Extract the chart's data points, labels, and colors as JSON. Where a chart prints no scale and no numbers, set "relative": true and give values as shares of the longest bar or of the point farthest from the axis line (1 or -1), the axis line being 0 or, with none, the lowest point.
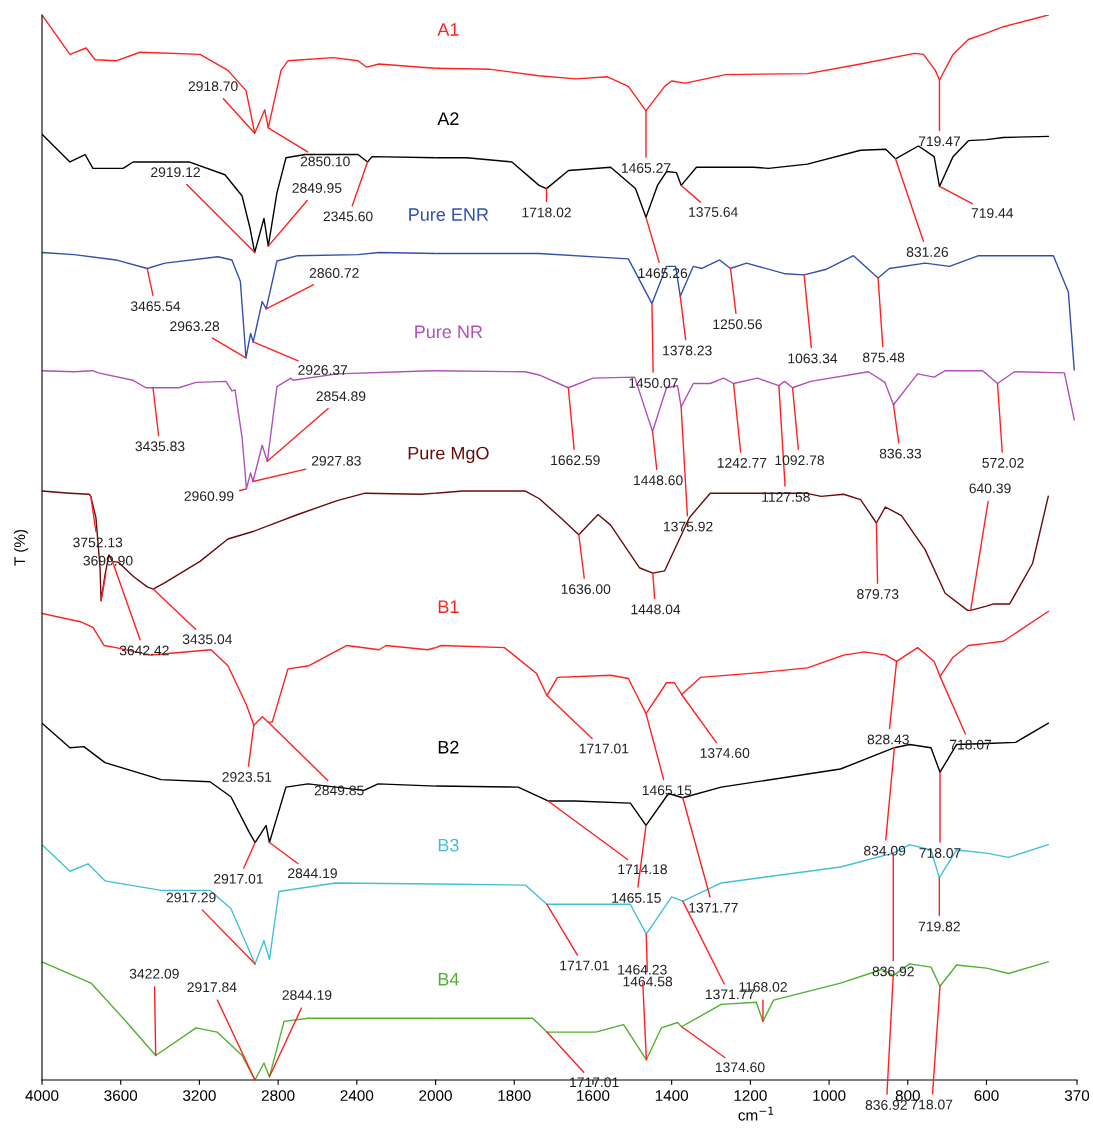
{
  "chart_data": [
    {
      "type": "line",
      "relative": true,
      "ylabel": "T (%)",
      "tick_labels": "x",
      "grid": false,
      "legend": false,
      "marker": "none",
      "line_style": "solid",
      "xlim": [
        4000,
        2000
      ],
      "xticks": [
        4000,
        3600,
        3200,
        2800,
        2400,
        2000
      ],
      "series": [
        {
          "color": "#ff2020",
          "x": [
            4000,
            3858,
            3776,
            3730,
            3624,
            3502,
            3197,
            3055,
            2963,
            2918.7,
            2868,
            2850.1,
            2785,
            2750,
            2521,
            2394,
            2350,
            2287,
            2074,
            2000
          ],
          "values": [
            1.0,
            0.963,
            0.969,
            0.958,
            0.957,
            0.965,
            0.963,
            0.948,
            0.929,
            0.889,
            0.911,
            0.894,
            0.948,
            0.957,
            0.96,
            0.957,
            0.951,
            0.954,
            0.951,
            0.95
          ]
        },
        {
          "color": "#000000",
          "x": [
            4000,
            3858,
            3781,
            3741,
            3588,
            3537,
            3253,
            3070,
            2983,
            2943,
            2919.12,
            2872,
            2849.95,
            2806,
            2760,
            2663,
            2394,
            2345.6,
            2323,
            2000
          ],
          "values": [
            0.888,
            0.862,
            0.869,
            0.856,
            0.856,
            0.862,
            0.862,
            0.85,
            0.83,
            0.8,
            0.777,
            0.809,
            0.783,
            0.833,
            0.866,
            0.869,
            0.869,
            0.862,
            0.867,
            0.866
          ]
        },
        {
          "color": "#3050b0",
          "x": [
            4000,
            3837,
            3624,
            3465.54,
            3375,
            3106,
            3035,
            2992,
            2963.28,
            2940,
            2926.37,
            2881,
            2860.72,
            2806,
            2700,
            2394,
            2287,
            2000
          ],
          "values": [
            0.777,
            0.775,
            0.77,
            0.762,
            0.767,
            0.773,
            0.77,
            0.75,
            0.678,
            0.701,
            0.693,
            0.731,
            0.724,
            0.769,
            0.774,
            0.775,
            0.777,
            0.776
          ]
        },
        {
          "color": "#b050b8",
          "x": [
            4000,
            3837,
            3741,
            3715,
            3537,
            3472,
            3435.83,
            3304,
            3217,
            3065,
            3035,
            3019,
            2983,
            2960.99,
            2940,
            2927.83,
            2881,
            2854.89,
            2806,
            2735,
            2724,
            2500,
            2020,
            2000
          ],
          "values": [
            0.666,
            0.665,
            0.666,
            0.664,
            0.657,
            0.65,
            0.65,
            0.65,
            0.655,
            0.656,
            0.647,
            0.648,
            0.603,
            0.555,
            0.57,
            0.562,
            0.596,
            0.581,
            0.651,
            0.659,
            0.657,
            0.663,
            0.666,
            0.666
          ]
        },
        {
          "color": "#6b0a0a",
          "x": [
            4000,
            3858,
            3760,
            3752.13,
            3726,
            3705,
            3699.9,
            3680,
            3660,
            3642.42,
            3610,
            3537,
            3465,
            3435.04,
            3375,
            3197,
            3055,
            2928,
            2700,
            2500,
            2358,
            2074,
            2000
          ],
          "values": [
            0.553,
            0.551,
            0.55,
            0.548,
            0.528,
            0.481,
            0.45,
            0.474,
            0.493,
            0.487,
            0.486,
            0.473,
            0.463,
            0.461,
            0.467,
            0.487,
            0.508,
            0.515,
            0.531,
            0.544,
            0.551,
            0.55,
            0.551
          ]
        },
        {
          "color": "#ff2020",
          "x": [
            4000,
            3800,
            3741,
            3685,
            3624,
            3446,
            3141,
            3055,
            2963,
            2923.51,
            2880,
            2849.85,
            2830,
            2750,
            2643,
            2450,
            2287,
            2251,
            2040,
            2000
          ],
          "values": [
            0.438,
            0.43,
            0.425,
            0.408,
            0.406,
            0.399,
            0.404,
            0.389,
            0.353,
            0.333,
            0.341,
            0.336,
            0.336,
            0.386,
            0.389,
            0.408,
            0.404,
            0.408,
            0.404,
            0.406
          ]
        },
        {
          "color": "#000000",
          "x": [
            4000,
            3858,
            3787,
            3680,
            3395,
            3146,
            3040,
            2948,
            2917.01,
            2861,
            2844.19,
            2760,
            2648,
            2364,
            2292,
            2000
          ],
          "values": [
            0.335,
            0.312,
            0.313,
            0.298,
            0.282,
            0.28,
            0.266,
            0.233,
            0.223,
            0.239,
            0.223,
            0.275,
            0.278,
            0.272,
            0.278,
            0.276
          ]
        },
        {
          "color": "#40c0d8",
          "x": [
            4000,
            3858,
            3766,
            3680,
            3395,
            3146,
            3040,
            2917.29,
            2872,
            2844,
            2796,
            2510,
            2000
          ],
          "values": [
            0.221,
            0.196,
            0.203,
            0.187,
            0.178,
            0.178,
            0.161,
            0.109,
            0.131,
            0.113,
            0.177,
            0.185,
            0.184
          ]
        },
        {
          "color": "#50b030",
          "x": [
            4000,
            3751,
            3573,
            3422.09,
            3217,
            3110,
            2983,
            2917.84,
            2872,
            2844.19,
            2770,
            2648,
            2000
          ],
          "values": [
            0.111,
            0.091,
            0.055,
            0.023,
            0.049,
            0.045,
            0.023,
            0.0,
            0.016,
            0.003,
            0.055,
            0.058,
            0.058
          ]
        }
      ],
      "annotations": [
        {
          "text": "2918.70",
          "x": 2918.7,
          "y": 0.889
        },
        {
          "text": "2850.10",
          "x": 2850.1,
          "y": 0.894
        },
        {
          "text": "2919.12",
          "x": 2919.12,
          "y": 0.777
        },
        {
          "text": "2849.95",
          "x": 2849.95,
          "y": 0.783
        },
        {
          "text": "2345.60",
          "x": 2345.6,
          "y": 0.862
        },
        {
          "text": "3465.54",
          "x": 3465.54,
          "y": 0.762
        },
        {
          "text": "2963.28",
          "x": 2963.28,
          "y": 0.678
        },
        {
          "text": "2926.37",
          "x": 2926.37,
          "y": 0.693
        },
        {
          "text": "2860.72",
          "x": 2860.72,
          "y": 0.724
        },
        {
          "text": "3435.83",
          "x": 3435.83,
          "y": 0.65
        },
        {
          "text": "2960.99",
          "x": 2960.99,
          "y": 0.555
        },
        {
          "text": "2927.83",
          "x": 2927.83,
          "y": 0.562
        },
        {
          "text": "2854.89",
          "x": 2854.89,
          "y": 0.581
        },
        {
          "text": "3752.13",
          "x": 3752.13,
          "y": 0.548
        },
        {
          "text": "3699.90",
          "x": 3699.9,
          "y": 0.45
        },
        {
          "text": "3642.42",
          "x": 3642.42,
          "y": 0.487
        },
        {
          "text": "3435.04",
          "x": 3435.04,
          "y": 0.461
        },
        {
          "text": "2923.51",
          "x": 2923.51,
          "y": 0.333
        },
        {
          "text": "2849.85",
          "x": 2849.85,
          "y": 0.336
        },
        {
          "text": "2917.01",
          "x": 2917.01,
          "y": 0.223
        },
        {
          "text": "2844.19",
          "x": 2844.19,
          "y": 0.223
        },
        {
          "text": "2917.29",
          "x": 2917.29,
          "y": 0.109
        },
        {
          "text": "3422.09",
          "x": 3422.09,
          "y": 0.023
        },
        {
          "text": "2917.84",
          "x": 2917.84,
          "y": 0.0
        },
        {
          "text": "2844.19",
          "x": 2844.19,
          "y": 0.003
        }
      ]
    },
    {
      "type": "line",
      "relative": true,
      "xlabel": "cm$^{−1}$",
      "tick_labels": "x",
      "grid": false,
      "legend": false,
      "marker": "none",
      "line_style": "solid",
      "xlim": [
        2000,
        370
      ],
      "xticks": [
        {
          "value": 2000,
          "label": null
        },
        1800,
        1600,
        1400,
        1200,
        1000,
        800,
        600,
        370
      ],
      "series": [
        {
          "name": "A1",
          "color": "#ff2020",
          "x": [
            2000,
            1860,
            1738,
            1644,
            1563,
            1510,
            1465.27,
            1418,
            1400,
            1365,
            1263,
            1055,
            920,
            783,
            760,
            730,
            719.47,
            685,
            646,
            600,
            557,
            443
          ],
          "values": [
            0.95,
            0.949,
            0.943,
            0.94,
            0.942,
            0.933,
            0.91,
            0.933,
            0.938,
            0.936,
            0.944,
            0.945,
            0.954,
            0.964,
            0.963,
            0.948,
            0.939,
            0.963,
            0.977,
            0.983,
            0.989,
            1.0
          ]
        },
        {
          "name": "A2",
          "color": "#000000",
          "x": [
            2000,
            1921,
            1806,
            1737,
            1718.02,
            1662,
            1555,
            1492,
            1465.26,
            1436,
            1413,
            1388,
            1375.64,
            1337,
            1192,
            1154,
            1055,
            920,
            856,
            831.26,
            773,
            733,
            719.44,
            685,
            646,
            600,
            557,
            443
          ],
          "values": [
            0.866,
            0.866,
            0.862,
            0.84,
            0.837,
            0.854,
            0.857,
            0.837,
            0.81,
            0.84,
            0.853,
            0.852,
            0.84,
            0.857,
            0.857,
            0.856,
            0.86,
            0.873,
            0.874,
            0.865,
            0.877,
            0.867,
            0.839,
            0.867,
            0.882,
            0.883,
            0.885,
            0.886
          ]
        },
        {
          "name": "Pure ENR",
          "color": "#3050b0",
          "x": [
            2000,
            1737,
            1510,
            1450.07,
            1413,
            1390,
            1378.23,
            1345,
            1323,
            1278,
            1250.56,
            1210,
            1111,
            1063.34,
            1009,
            938,
            875.48,
            847,
            756,
            694,
            620,
            600,
            430,
            392,
            377
          ],
          "values": [
            0.776,
            0.776,
            0.771,
            0.729,
            0.764,
            0.764,
            0.736,
            0.764,
            0.762,
            0.77,
            0.762,
            0.767,
            0.757,
            0.756,
            0.761,
            0.774,
            0.753,
            0.762,
            0.767,
            0.764,
            0.774,
            0.774,
            0.774,
            0.74,
            0.667
          ]
        },
        {
          "name": "Pure NR",
          "color": "#b050b8",
          "x": [
            2000,
            1772,
            1737,
            1662.59,
            1600,
            1494,
            1448.6,
            1413,
            1385,
            1375.92,
            1345,
            1302,
            1268,
            1242.77,
            1182,
            1127.58,
            1113,
            1092.78,
            1047,
            900,
            858,
            836.33,
            775,
            733,
            705,
            610,
            600,
            572.02,
            529,
            402,
            377
          ],
          "values": [
            0.666,
            0.665,
            0.662,
            0.65,
            0.659,
            0.66,
            0.609,
            0.65,
            0.652,
            0.632,
            0.654,
            0.654,
            0.659,
            0.654,
            0.659,
            0.652,
            0.656,
            0.65,
            0.656,
            0.665,
            0.655,
            0.634,
            0.663,
            0.66,
            0.666,
            0.666,
            0.663,
            0.654,
            0.665,
            0.664,
            0.62
          ]
        },
        {
          "name": "Pure MgO",
          "color": "#6b0a0a",
          "x": [
            2000,
            1931,
            1772,
            1737,
            1682,
            1636,
            1587,
            1555,
            1482,
            1448.04,
            1418,
            1355,
            1302,
            1060,
            1020,
            963,
            920,
            879.73,
            857,
            816,
            756,
            705,
            648,
            640.39,
            600,
            582,
            541,
            483,
            443
          ],
          "values": [
            0.551,
            0.553,
            0.553,
            0.546,
            0.528,
            0.512,
            0.531,
            0.521,
            0.481,
            0.476,
            0.478,
            0.528,
            0.551,
            0.551,
            0.548,
            0.55,
            0.545,
            0.523,
            0.538,
            0.53,
            0.498,
            0.457,
            0.441,
            0.441,
            0.445,
            0.447,
            0.447,
            0.485,
            0.548
          ]
        },
        {
          "name": "B1",
          "color": "#ff2020",
          "x": [
            2000,
            1985,
            1825,
            1744,
            1717.01,
            1690,
            1555,
            1510,
            1465.15,
            1413,
            1393,
            1374.6,
            1327,
            1192,
            1055,
            963,
            910,
            856,
            828.43,
            775,
            733,
            718.07,
            685,
            646,
            600,
            557,
            443
          ],
          "values": [
            0.406,
            0.408,
            0.406,
            0.382,
            0.361,
            0.378,
            0.38,
            0.377,
            0.344,
            0.373,
            0.373,
            0.362,
            0.378,
            0.382,
            0.387,
            0.399,
            0.402,
            0.399,
            0.393,
            0.406,
            0.393,
            0.379,
            0.397,
            0.408,
            0.41,
            0.412,
            0.44
          ]
        },
        {
          "name": "B2",
          "color": "#000000",
          "x": [
            2000,
            1790,
            1714.18,
            1647,
            1505,
            1465.15,
            1408,
            1371.77,
            1274,
            971,
            834.09,
            795,
            741,
            718.07,
            676,
            600,
            526,
            443
          ],
          "values": [
            0.276,
            0.275,
            0.262,
            0.262,
            0.26,
            0.239,
            0.269,
            0.265,
            0.275,
            0.292,
            0.312,
            0.315,
            0.312,
            0.289,
            0.315,
            0.316,
            0.317,
            0.335
          ]
        },
        {
          "name": "B3",
          "color": "#40c0d8",
          "x": [
            2000,
            1772,
            1717.01,
            1505,
            1464.58,
            1400,
            1371.77,
            1274,
            971,
            836.92,
            795,
            741,
            719.82,
            676,
            600,
            544,
            443
          ],
          "values": [
            0.184,
            0.183,
            0.165,
            0.165,
            0.137,
            0.172,
            0.168,
            0.185,
            0.2,
            0.213,
            0.221,
            0.216,
            0.19,
            0.216,
            0.213,
            0.209,
            0.221
          ]
        },
        {
          "name": "B4",
          "color": "#50b030",
          "x": [
            2000,
            1753,
            1717.01,
            1593,
            1522,
            1464.23,
            1426,
            1385,
            1374.6,
            1274,
            1185,
            1168.02,
            1141,
            971,
            864,
            836.92,
            795,
            741,
            718.07,
            676,
            600,
            544,
            443
          ],
          "values": [
            0.058,
            0.058,
            0.045,
            0.045,
            0.052,
            0.019,
            0.049,
            0.054,
            0.05,
            0.071,
            0.073,
            0.055,
            0.075,
            0.091,
            0.104,
            0.098,
            0.109,
            0.106,
            0.088,
            0.108,
            0.105,
            0.1,
            0.111
          ]
        }
      ],
      "annotations": [
        {
          "text": "1465.27",
          "x": 1465.27,
          "y": 0.91
        },
        {
          "text": "719.47",
          "x": 719.47,
          "y": 0.939
        },
        {
          "text": "1718.02",
          "x": 1718.02,
          "y": 0.837
        },
        {
          "text": "1465.26",
          "x": 1465.26,
          "y": 0.81
        },
        {
          "text": "1375.64",
          "x": 1375.64,
          "y": 0.84
        },
        {
          "text": "831.26",
          "x": 831.26,
          "y": 0.865
        },
        {
          "text": "719.44",
          "x": 719.44,
          "y": 0.839
        },
        {
          "text": "1450.07",
          "x": 1450.07,
          "y": 0.729
        },
        {
          "text": "1378.23",
          "x": 1378.23,
          "y": 0.736
        },
        {
          "text": "1250.56",
          "x": 1250.56,
          "y": 0.762
        },
        {
          "text": "1063.34",
          "x": 1063.34,
          "y": 0.756
        },
        {
          "text": "875.48",
          "x": 875.48,
          "y": 0.753
        },
        {
          "text": "1662.59",
          "x": 1662.59,
          "y": 0.65
        },
        {
          "text": "1448.60",
          "x": 1448.6,
          "y": 0.609
        },
        {
          "text": "1375.92",
          "x": 1375.92,
          "y": 0.632
        },
        {
          "text": "1242.77",
          "x": 1242.77,
          "y": 0.654
        },
        {
          "text": "1127.58",
          "x": 1127.58,
          "y": 0.652
        },
        {
          "text": "1092.78",
          "x": 1092.78,
          "y": 0.65
        },
        {
          "text": "836.33",
          "x": 836.33,
          "y": 0.634
        },
        {
          "text": "1636.00",
          "x": 1636,
          "y": 0.512
        },
        {
          "text": "1448.04",
          "x": 1448.04,
          "y": 0.476
        },
        {
          "text": "879.73",
          "x": 879.73,
          "y": 0.523
        },
        {
          "text": "640.39",
          "x": 640.39,
          "y": 0.441
        },
        {
          "text": "1717.01",
          "x": 1717.01,
          "y": 0.361
        },
        {
          "text": "1465.15",
          "x": 1465.15,
          "y": 0.344
        },
        {
          "text": "1374.60",
          "x": 1374.6,
          "y": 0.362
        },
        {
          "text": "828.43",
          "x": 828.43,
          "y": 0.393
        },
        {
          "text": "718.07",
          "x": 718.07,
          "y": 0.379
        },
        {
          "text": "1714.18",
          "x": 1714.18,
          "y": 0.262
        },
        {
          "text": "1465.15",
          "x": 1465.15,
          "y": 0.239
        },
        {
          "text": "1371.77",
          "x": 1371.77,
          "y": 0.265
        },
        {
          "text": "834.09",
          "x": 834.09,
          "y": 0.312
        },
        {
          "text": "718.07",
          "x": 718.07,
          "y": 0.289
        },
        {
          "text": "1717.01",
          "x": 1717.01,
          "y": 0.165
        },
        {
          "text": "1464.58",
          "x": 1464.58,
          "y": 0.137
        },
        {
          "text": "1371.77",
          "x": 1371.77,
          "y": 0.168
        },
        {
          "text": "836.92",
          "x": 836.92,
          "y": 0.213
        },
        {
          "text": "719.82",
          "x": 719.82,
          "y": 0.19
        },
        {
          "text": "1717.01",
          "x": 1717.01,
          "y": 0.045
        },
        {
          "text": "1464.23",
          "x": 1464.23,
          "y": 0.019
        },
        {
          "text": "1374.60",
          "x": 1374.6,
          "y": 0.05
        },
        {
          "text": "1168.02",
          "x": 1168.02,
          "y": 0.055
        },
        {
          "text": "836.92",
          "x": 836.92,
          "y": 0.098
        },
        {
          "text": "718.07",
          "x": 718.07,
          "y": 0.088
        },
        {
          "text": "572.02",
          "x": 572.02,
          "y": 0.654
        }
      ]
    }
  ]
}
